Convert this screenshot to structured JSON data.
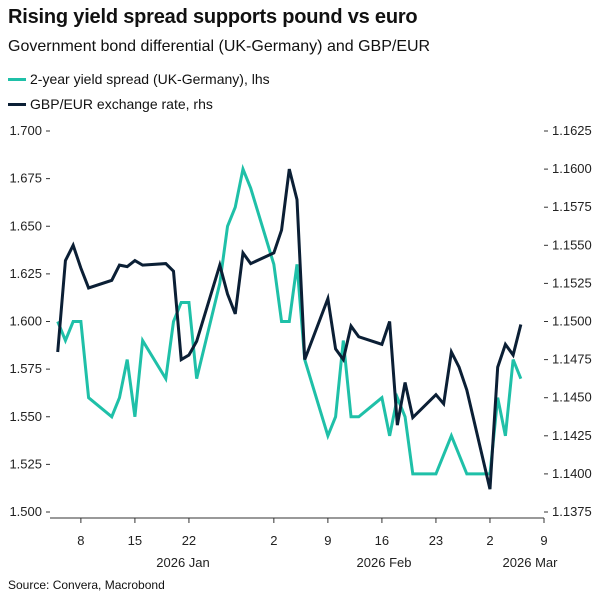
{
  "title": "Rising yield spread supports pound vs euro",
  "subtitle": "Government bond differential (UK-Germany) and GBP/EUR",
  "source": "Source: Convera, Macrobond",
  "chart_data": {
    "type": "line",
    "title": "Rising yield spread supports pound vs euro",
    "subtitle": "Government bond differential (UK-Germany) and GBP/EUR",
    "x": [
      "2026-01-05",
      "2026-01-06",
      "2026-01-07",
      "2026-01-08",
      "2026-01-09",
      "2026-01-12",
      "2026-01-13",
      "2026-01-14",
      "2026-01-15",
      "2026-01-16",
      "2026-01-19",
      "2026-01-20",
      "2026-01-21",
      "2026-01-22",
      "2026-01-23",
      "2026-01-26",
      "2026-01-27",
      "2026-01-28",
      "2026-01-29",
      "2026-01-30",
      "2026-02-02",
      "2026-02-03",
      "2026-02-04",
      "2026-02-05",
      "2026-02-06",
      "2026-02-09",
      "2026-02-10",
      "2026-02-11",
      "2026-02-12",
      "2026-02-13",
      "2026-02-16",
      "2026-02-17",
      "2026-02-18",
      "2026-02-19",
      "2026-02-20",
      "2026-02-23",
      "2026-02-24",
      "2026-02-25",
      "2026-02-26",
      "2026-02-27",
      "2026-03-02",
      "2026-03-03",
      "2026-03-04",
      "2026-03-05",
      "2026-03-06"
    ],
    "series": [
      {
        "name": "2-year yield spread (UK-Germany), lhs",
        "axis": "left",
        "color": "#1FC0A8",
        "values": [
          1.6,
          1.59,
          1.6,
          1.6,
          1.56,
          1.55,
          1.56,
          1.58,
          1.55,
          1.59,
          1.57,
          1.6,
          1.61,
          1.61,
          1.57,
          1.62,
          1.65,
          1.66,
          1.68,
          1.67,
          1.63,
          1.6,
          1.6,
          1.63,
          1.58,
          1.54,
          1.55,
          1.59,
          1.55,
          1.55,
          1.56,
          1.54,
          1.56,
          1.55,
          1.52,
          1.52,
          1.53,
          1.54,
          1.53,
          1.52,
          1.52,
          1.56,
          1.54,
          1.58,
          1.57
        ]
      },
      {
        "name": "GBP/EUR exchange rate, rhs",
        "axis": "right",
        "color": "#0B1F35",
        "values": [
          1.148,
          1.154,
          1.155,
          1.1535,
          1.1522,
          1.1527,
          1.1537,
          1.1536,
          1.154,
          1.1537,
          1.1538,
          1.1533,
          1.1475,
          1.1478,
          1.1487,
          1.1537,
          1.1518,
          1.1505,
          1.1545,
          1.1538,
          1.1545,
          1.156,
          1.16,
          1.158,
          1.1475,
          1.1515,
          1.1482,
          1.1475,
          1.1497,
          1.149,
          1.1485,
          1.15,
          1.1432,
          1.146,
          1.1437,
          1.1452,
          1.1446,
          1.148,
          1.147,
          1.1455,
          1.139,
          1.147,
          1.1485,
          1.1478,
          1.1498
        ]
      }
    ],
    "y_left": {
      "lim": [
        1.5,
        1.7
      ],
      "ticks": [
        "1.500",
        "1.525",
        "1.550",
        "1.575",
        "1.600",
        "1.625",
        "1.650",
        "1.675",
        "1.700"
      ]
    },
    "y_right": {
      "lim": [
        1.1375,
        1.1625
      ],
      "ticks": [
        "1.1375",
        "1.1400",
        "1.1425",
        "1.1450",
        "1.1475",
        "1.1500",
        "1.1525",
        "1.1550",
        "1.1575",
        "1.1600",
        "1.1625"
      ]
    },
    "x_ticks": [
      {
        "date": "2026-01-08",
        "label": "8"
      },
      {
        "date": "2026-01-15",
        "label": "15"
      },
      {
        "date": "2026-01-22",
        "label": "22"
      },
      {
        "date": "2026-02-02",
        "label": "2"
      },
      {
        "date": "2026-02-09",
        "label": "9"
      },
      {
        "date": "2026-02-16",
        "label": "16"
      },
      {
        "date": "2026-02-23",
        "label": "23"
      },
      {
        "date": "2026-03-02",
        "label": "2"
      },
      {
        "date": "2026-03-09",
        "label": "9"
      }
    ],
    "x_groups": [
      "2026 Jan",
      "2026 Feb",
      "2026 Mar"
    ],
    "x_range": [
      "2026-01-04",
      "2026-03-09"
    ],
    "grid": false,
    "legend": "top-left"
  }
}
